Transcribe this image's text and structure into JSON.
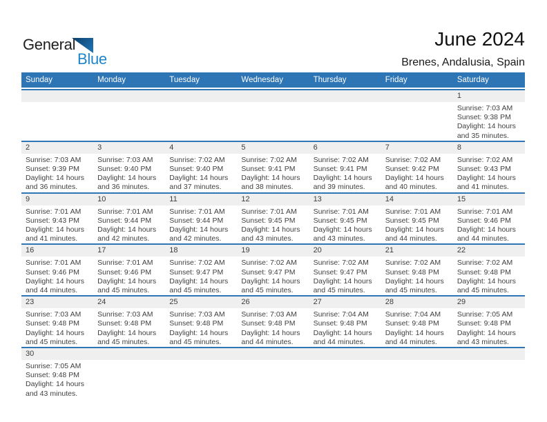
{
  "logo": {
    "general": "General",
    "blue": "Blue"
  },
  "header": {
    "title": "June 2024",
    "subtitle": "Brenes, Andalusia, Spain"
  },
  "colors": {
    "header_bar": "#2e75b6",
    "week_divider": "#2e75b6",
    "day_number_band": "#efefef",
    "logo_blue": "#1e86c8"
  },
  "calendar": {
    "day_names": [
      "Sunday",
      "Monday",
      "Tuesday",
      "Wednesday",
      "Thursday",
      "Friday",
      "Saturday"
    ],
    "weeks": [
      [
        null,
        null,
        null,
        null,
        null,
        null,
        {
          "day": "1",
          "sunrise": "Sunrise: 7:03 AM",
          "sunset": "Sunset: 9:38 PM",
          "daylight": "Daylight: 14 hours and 35 minutes."
        }
      ],
      [
        {
          "day": "2",
          "sunrise": "Sunrise: 7:03 AM",
          "sunset": "Sunset: 9:39 PM",
          "daylight": "Daylight: 14 hours and 36 minutes."
        },
        {
          "day": "3",
          "sunrise": "Sunrise: 7:03 AM",
          "sunset": "Sunset: 9:40 PM",
          "daylight": "Daylight: 14 hours and 36 minutes."
        },
        {
          "day": "4",
          "sunrise": "Sunrise: 7:02 AM",
          "sunset": "Sunset: 9:40 PM",
          "daylight": "Daylight: 14 hours and 37 minutes."
        },
        {
          "day": "5",
          "sunrise": "Sunrise: 7:02 AM",
          "sunset": "Sunset: 9:41 PM",
          "daylight": "Daylight: 14 hours and 38 minutes."
        },
        {
          "day": "6",
          "sunrise": "Sunrise: 7:02 AM",
          "sunset": "Sunset: 9:41 PM",
          "daylight": "Daylight: 14 hours and 39 minutes."
        },
        {
          "day": "7",
          "sunrise": "Sunrise: 7:02 AM",
          "sunset": "Sunset: 9:42 PM",
          "daylight": "Daylight: 14 hours and 40 minutes."
        },
        {
          "day": "8",
          "sunrise": "Sunrise: 7:02 AM",
          "sunset": "Sunset: 9:43 PM",
          "daylight": "Daylight: 14 hours and 41 minutes."
        }
      ],
      [
        {
          "day": "9",
          "sunrise": "Sunrise: 7:01 AM",
          "sunset": "Sunset: 9:43 PM",
          "daylight": "Daylight: 14 hours and 41 minutes."
        },
        {
          "day": "10",
          "sunrise": "Sunrise: 7:01 AM",
          "sunset": "Sunset: 9:44 PM",
          "daylight": "Daylight: 14 hours and 42 minutes."
        },
        {
          "day": "11",
          "sunrise": "Sunrise: 7:01 AM",
          "sunset": "Sunset: 9:44 PM",
          "daylight": "Daylight: 14 hours and 42 minutes."
        },
        {
          "day": "12",
          "sunrise": "Sunrise: 7:01 AM",
          "sunset": "Sunset: 9:45 PM",
          "daylight": "Daylight: 14 hours and 43 minutes."
        },
        {
          "day": "13",
          "sunrise": "Sunrise: 7:01 AM",
          "sunset": "Sunset: 9:45 PM",
          "daylight": "Daylight: 14 hours and 43 minutes."
        },
        {
          "day": "14",
          "sunrise": "Sunrise: 7:01 AM",
          "sunset": "Sunset: 9:45 PM",
          "daylight": "Daylight: 14 hours and 44 minutes."
        },
        {
          "day": "15",
          "sunrise": "Sunrise: 7:01 AM",
          "sunset": "Sunset: 9:46 PM",
          "daylight": "Daylight: 14 hours and 44 minutes."
        }
      ],
      [
        {
          "day": "16",
          "sunrise": "Sunrise: 7:01 AM",
          "sunset": "Sunset: 9:46 PM",
          "daylight": "Daylight: 14 hours and 44 minutes."
        },
        {
          "day": "17",
          "sunrise": "Sunrise: 7:01 AM",
          "sunset": "Sunset: 9:46 PM",
          "daylight": "Daylight: 14 hours and 45 minutes."
        },
        {
          "day": "18",
          "sunrise": "Sunrise: 7:02 AM",
          "sunset": "Sunset: 9:47 PM",
          "daylight": "Daylight: 14 hours and 45 minutes."
        },
        {
          "day": "19",
          "sunrise": "Sunrise: 7:02 AM",
          "sunset": "Sunset: 9:47 PM",
          "daylight": "Daylight: 14 hours and 45 minutes."
        },
        {
          "day": "20",
          "sunrise": "Sunrise: 7:02 AM",
          "sunset": "Sunset: 9:47 PM",
          "daylight": "Daylight: 14 hours and 45 minutes."
        },
        {
          "day": "21",
          "sunrise": "Sunrise: 7:02 AM",
          "sunset": "Sunset: 9:48 PM",
          "daylight": "Daylight: 14 hours and 45 minutes."
        },
        {
          "day": "22",
          "sunrise": "Sunrise: 7:02 AM",
          "sunset": "Sunset: 9:48 PM",
          "daylight": "Daylight: 14 hours and 45 minutes."
        }
      ],
      [
        {
          "day": "23",
          "sunrise": "Sunrise: 7:03 AM",
          "sunset": "Sunset: 9:48 PM",
          "daylight": "Daylight: 14 hours and 45 minutes."
        },
        {
          "day": "24",
          "sunrise": "Sunrise: 7:03 AM",
          "sunset": "Sunset: 9:48 PM",
          "daylight": "Daylight: 14 hours and 45 minutes."
        },
        {
          "day": "25",
          "sunrise": "Sunrise: 7:03 AM",
          "sunset": "Sunset: 9:48 PM",
          "daylight": "Daylight: 14 hours and 45 minutes."
        },
        {
          "day": "26",
          "sunrise": "Sunrise: 7:03 AM",
          "sunset": "Sunset: 9:48 PM",
          "daylight": "Daylight: 14 hours and 44 minutes."
        },
        {
          "day": "27",
          "sunrise": "Sunrise: 7:04 AM",
          "sunset": "Sunset: 9:48 PM",
          "daylight": "Daylight: 14 hours and 44 minutes."
        },
        {
          "day": "28",
          "sunrise": "Sunrise: 7:04 AM",
          "sunset": "Sunset: 9:48 PM",
          "daylight": "Daylight: 14 hours and 44 minutes."
        },
        {
          "day": "29",
          "sunrise": "Sunrise: 7:05 AM",
          "sunset": "Sunset: 9:48 PM",
          "daylight": "Daylight: 14 hours and 43 minutes."
        }
      ],
      [
        {
          "day": "30",
          "sunrise": "Sunrise: 7:05 AM",
          "sunset": "Sunset: 9:48 PM",
          "daylight": "Daylight: 14 hours and 43 minutes."
        },
        null,
        null,
        null,
        null,
        null,
        null
      ]
    ]
  }
}
